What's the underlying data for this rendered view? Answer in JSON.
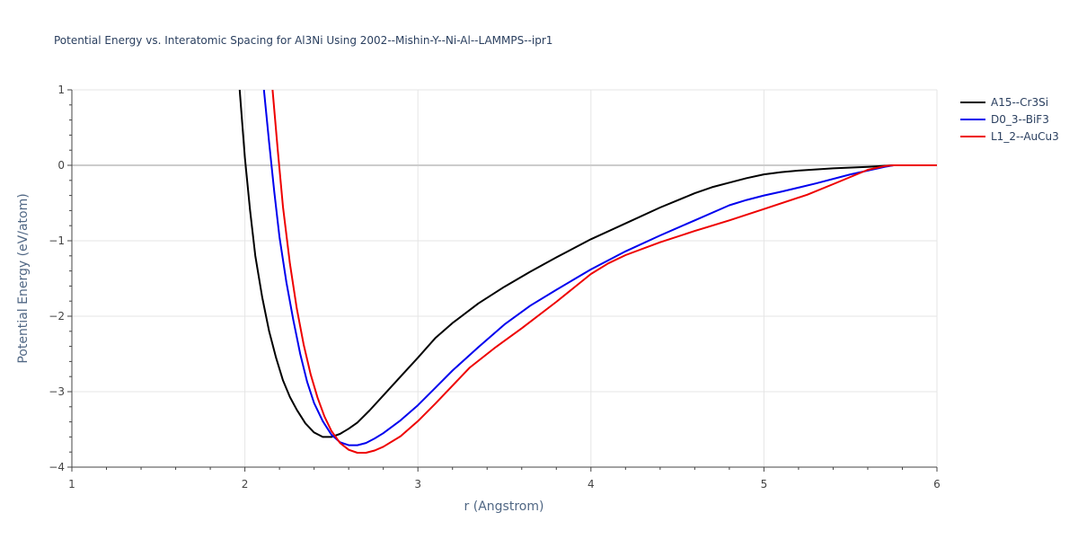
{
  "chart_data": {
    "type": "line",
    "title": "Potential Energy vs. Interatomic Spacing for Al3Ni Using 2002--Mishin-Y--Ni-Al--LAMMPS--ipr1",
    "xlabel": "r (Angstrom)",
    "ylabel": "Potential Energy (eV/atom)",
    "xlim": [
      1,
      6
    ],
    "ylim": [
      -4,
      1
    ],
    "xticks": [
      1,
      2,
      3,
      4,
      5,
      6
    ],
    "yticks": [
      1,
      0,
      -1,
      -2,
      -3,
      -4
    ],
    "ytick_labels": [
      "1",
      "0",
      "−1",
      "−2",
      "−3",
      "−4"
    ],
    "grid": true,
    "legend_position": "top-right",
    "series": [
      {
        "name": "A15--Cr3Si",
        "color": "#000000",
        "x": [
          1.97,
          2.0,
          2.03,
          2.06,
          2.1,
          2.14,
          2.18,
          2.22,
          2.26,
          2.3,
          2.35,
          2.4,
          2.45,
          2.5,
          2.55,
          2.6,
          2.65,
          2.72,
          2.8,
          2.9,
          3.0,
          3.1,
          3.2,
          3.35,
          3.5,
          3.65,
          3.8,
          4.0,
          4.2,
          4.4,
          4.6,
          4.7,
          4.8,
          4.9,
          5.0,
          5.1,
          5.2,
          5.4,
          5.6,
          5.75,
          6.0
        ],
        "y": [
          1.0,
          0.1,
          -0.6,
          -1.2,
          -1.75,
          -2.2,
          -2.55,
          -2.85,
          -3.07,
          -3.24,
          -3.42,
          -3.54,
          -3.6,
          -3.6,
          -3.56,
          -3.49,
          -3.41,
          -3.25,
          -3.05,
          -2.8,
          -2.55,
          -2.29,
          -2.09,
          -1.83,
          -1.61,
          -1.41,
          -1.22,
          -0.98,
          -0.77,
          -0.56,
          -0.37,
          -0.29,
          -0.23,
          -0.17,
          -0.12,
          -0.09,
          -0.07,
          -0.04,
          -0.02,
          0.0,
          0.0
        ]
      },
      {
        "name": "D0_3--BiF3",
        "color": "#0000ee",
        "x": [
          2.11,
          2.14,
          2.17,
          2.2,
          2.24,
          2.28,
          2.32,
          2.36,
          2.4,
          2.45,
          2.5,
          2.55,
          2.6,
          2.65,
          2.7,
          2.75,
          2.8,
          2.9,
          3.0,
          3.1,
          3.2,
          3.35,
          3.5,
          3.65,
          3.8,
          4.0,
          4.2,
          4.4,
          4.6,
          4.8,
          4.9,
          5.0,
          5.1,
          5.3,
          5.5,
          5.7,
          5.75,
          6.0
        ],
        "y": [
          1.0,
          0.3,
          -0.35,
          -0.95,
          -1.55,
          -2.05,
          -2.5,
          -2.87,
          -3.15,
          -3.39,
          -3.57,
          -3.67,
          -3.71,
          -3.71,
          -3.68,
          -3.62,
          -3.55,
          -3.38,
          -3.18,
          -2.95,
          -2.72,
          -2.41,
          -2.11,
          -1.86,
          -1.65,
          -1.38,
          -1.14,
          -0.93,
          -0.73,
          -0.53,
          -0.46,
          -0.4,
          -0.35,
          -0.24,
          -0.12,
          -0.02,
          0.0,
          0.0
        ]
      },
      {
        "name": "L1_2--AuCu3",
        "color": "#ee0000",
        "x": [
          2.16,
          2.19,
          2.22,
          2.26,
          2.3,
          2.34,
          2.38,
          2.42,
          2.46,
          2.5,
          2.55,
          2.6,
          2.65,
          2.7,
          2.75,
          2.8,
          2.9,
          3.0,
          3.1,
          3.2,
          3.3,
          3.45,
          3.6,
          3.8,
          4.0,
          4.1,
          4.2,
          4.4,
          4.6,
          4.8,
          5.0,
          5.25,
          5.4,
          5.6,
          5.7,
          5.75,
          6.0
        ],
        "y": [
          1.0,
          0.2,
          -0.55,
          -1.3,
          -1.9,
          -2.38,
          -2.77,
          -3.08,
          -3.33,
          -3.52,
          -3.68,
          -3.77,
          -3.81,
          -3.81,
          -3.78,
          -3.73,
          -3.59,
          -3.39,
          -3.16,
          -2.92,
          -2.68,
          -2.41,
          -2.16,
          -1.81,
          -1.44,
          -1.3,
          -1.19,
          -1.02,
          -0.87,
          -0.73,
          -0.58,
          -0.39,
          -0.25,
          -0.06,
          -0.01,
          0.0,
          0.0
        ]
      }
    ]
  }
}
